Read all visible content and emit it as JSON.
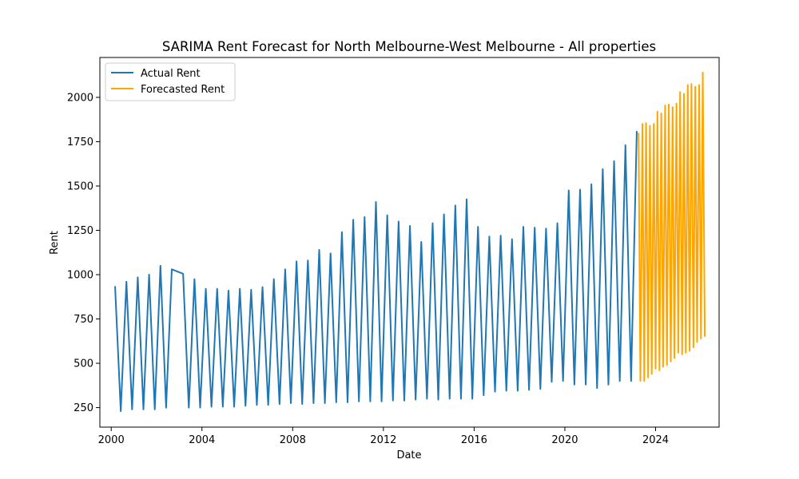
{
  "chart_data": {
    "type": "line",
    "title": "SARIMA Rent Forecast for North Melbourne-West Melbourne - All properties",
    "xlabel": "Date",
    "ylabel": "Rent",
    "xlim": [
      1999.5,
      2026.8
    ],
    "ylim": [
      140,
      2225
    ],
    "x_ticks": [
      2000,
      2004,
      2008,
      2012,
      2016,
      2020,
      2024
    ],
    "x_tick_labels": [
      "2000",
      "2004",
      "2008",
      "2012",
      "2016",
      "2020",
      "2024"
    ],
    "y_ticks": [
      250,
      500,
      750,
      1000,
      1250,
      1500,
      1750,
      2000
    ],
    "y_tick_labels": [
      "250",
      "500",
      "750",
      "1000",
      "1250",
      "1500",
      "1750",
      "2000"
    ],
    "grid": false,
    "legend_position": "top-left",
    "series": [
      {
        "name": "Actual Rent",
        "color": "#1f77b4",
        "x": [
          2000.17,
          2000.42,
          2000.67,
          2000.92,
          2001.17,
          2001.42,
          2001.67,
          2001.92,
          2002.17,
          2002.42,
          2002.67,
          2003.17,
          2003.42,
          2003.67,
          2003.92,
          2004.17,
          2004.42,
          2004.67,
          2004.92,
          2005.17,
          2005.42,
          2005.67,
          2005.92,
          2006.17,
          2006.42,
          2006.67,
          2006.92,
          2007.17,
          2007.42,
          2007.67,
          2007.92,
          2008.17,
          2008.42,
          2008.67,
          2008.92,
          2009.17,
          2009.42,
          2009.67,
          2009.92,
          2010.17,
          2010.42,
          2010.67,
          2010.92,
          2011.17,
          2011.42,
          2011.67,
          2011.92,
          2012.17,
          2012.42,
          2012.67,
          2012.92,
          2013.17,
          2013.42,
          2013.67,
          2013.92,
          2014.17,
          2014.42,
          2014.67,
          2014.92,
          2015.17,
          2015.42,
          2015.67,
          2015.92,
          2016.17,
          2016.42,
          2016.67,
          2016.92,
          2017.17,
          2017.42,
          2017.67,
          2017.92,
          2018.17,
          2018.42,
          2018.67,
          2018.92,
          2019.17,
          2019.42,
          2019.67,
          2019.92,
          2020.17,
          2020.42,
          2020.67,
          2020.92,
          2021.17,
          2021.42,
          2021.67,
          2021.92,
          2022.17,
          2022.42,
          2022.67,
          2022.92,
          2023.17
        ],
        "y": [
          935,
          230,
          960,
          240,
          985,
          240,
          1000,
          240,
          1050,
          250,
          1030,
          1005,
          250,
          975,
          250,
          920,
          255,
          920,
          255,
          910,
          255,
          920,
          260,
          915,
          265,
          930,
          265,
          975,
          270,
          1030,
          275,
          1075,
          270,
          1080,
          275,
          1140,
          275,
          1120,
          280,
          1240,
          280,
          1310,
          285,
          1325,
          285,
          1410,
          285,
          1335,
          290,
          1300,
          290,
          1275,
          295,
          1185,
          300,
          1290,
          295,
          1340,
          300,
          1390,
          300,
          1425,
          300,
          1270,
          320,
          1215,
          340,
          1220,
          345,
          1200,
          345,
          1270,
          350,
          1265,
          355,
          1260,
          395,
          1290,
          400,
          1475,
          380,
          1480,
          380,
          1510,
          360,
          1595,
          380,
          1640,
          400,
          1730,
          400,
          1810
        ]
      },
      {
        "name": "Forecasted Rent",
        "color": "#ffa500",
        "x": [
          2023.25,
          2023.33,
          2023.42,
          2023.5,
          2023.58,
          2023.67,
          2023.75,
          2023.83,
          2023.92,
          2024.0,
          2024.08,
          2024.17,
          2024.25,
          2024.33,
          2024.42,
          2024.5,
          2024.58,
          2024.67,
          2024.75,
          2024.83,
          2024.92,
          2025.0,
          2025.08,
          2025.17,
          2025.25,
          2025.33,
          2025.42,
          2025.5,
          2025.58,
          2025.67,
          2025.75,
          2025.83,
          2025.92,
          2026.0,
          2026.08,
          2026.17
        ],
        "y": [
          1800,
          400,
          1850,
          400,
          1855,
          420,
          1840,
          440,
          1850,
          470,
          1920,
          460,
          1910,
          480,
          1955,
          490,
          1960,
          510,
          1945,
          530,
          1965,
          560,
          2030,
          550,
          2020,
          560,
          2070,
          570,
          2075,
          590,
          2060,
          620,
          2070,
          640,
          2140,
          650
        ]
      }
    ]
  }
}
